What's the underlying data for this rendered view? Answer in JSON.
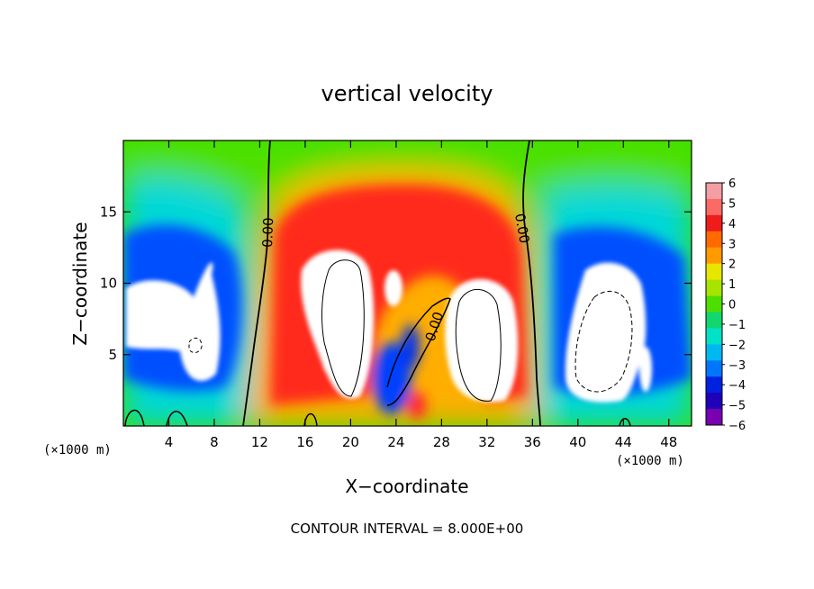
{
  "chart_data": {
    "type": "heatmap",
    "title": "vertical velocity",
    "xlabel": "X−coordinate",
    "ylabel": "Z−coordinate",
    "x_unit_left": "(×1000 m)",
    "x_unit_right": "(×1000 m)",
    "xlim": [
      0,
      50
    ],
    "ylim": [
      0,
      20
    ],
    "x_ticks": [
      4,
      8,
      12,
      16,
      20,
      24,
      28,
      32,
      36,
      40,
      44,
      48
    ],
    "x_tick_labels": [
      "4",
      "8",
      "12",
      "16",
      "20",
      "24",
      "28",
      "32",
      "36",
      "40",
      "44",
      "48"
    ],
    "y_ticks": [
      5,
      10,
      15
    ],
    "y_tick_labels": [
      "5",
      "10",
      "15"
    ],
    "contour_labels": [
      "0.00",
      "0.00",
      "0.00"
    ],
    "footer": "CONTOUR INTERVAL = 8.000E+00",
    "colorbar": {
      "labels": [
        "6",
        "5",
        "4",
        "3",
        "2",
        "1",
        "0",
        "−1",
        "−2",
        "−3",
        "−4",
        "−5",
        "−6"
      ],
      "colors": [
        "#f49ea3",
        "#fb6a64",
        "#ef1c1c",
        "#ff6a00",
        "#ff9a00",
        "#e7e600",
        "#a8e400",
        "#4ede00",
        "#12d66e",
        "#00e2c6",
        "#00b8f0",
        "#0076ff",
        "#0022e0",
        "#2000b8",
        "#7a00b0"
      ]
    },
    "field_cells": [
      {
        "x": 3,
        "z": 9,
        "w": -6
      },
      {
        "x": 6,
        "z": 6,
        "w": -6
      },
      {
        "x": 5,
        "z": 16,
        "w": -2
      },
      {
        "x": 2,
        "z": 4,
        "w": -4
      },
      {
        "x": 9,
        "z": 11,
        "w": -3
      },
      {
        "x": 19,
        "z": 8,
        "w": 6
      },
      {
        "x": 20,
        "z": 14,
        "w": 3
      },
      {
        "x": 26,
        "z": 15,
        "w": 3
      },
      {
        "x": 24,
        "z": 6,
        "w": -4
      },
      {
        "x": 31,
        "z": 7,
        "w": 6
      },
      {
        "x": 27,
        "z": 9,
        "w": 4
      },
      {
        "x": 42,
        "z": 7,
        "w": -6
      },
      {
        "x": 45,
        "z": 12,
        "w": -3
      },
      {
        "x": 40,
        "z": 3,
        "w": -5
      },
      {
        "x": 25,
        "z": 19,
        "w": 1
      },
      {
        "x": 7,
        "z": 19,
        "w": 0
      },
      {
        "x": 45,
        "z": 18,
        "w": 0
      },
      {
        "x": 16,
        "z": 3,
        "w": 4
      }
    ]
  }
}
